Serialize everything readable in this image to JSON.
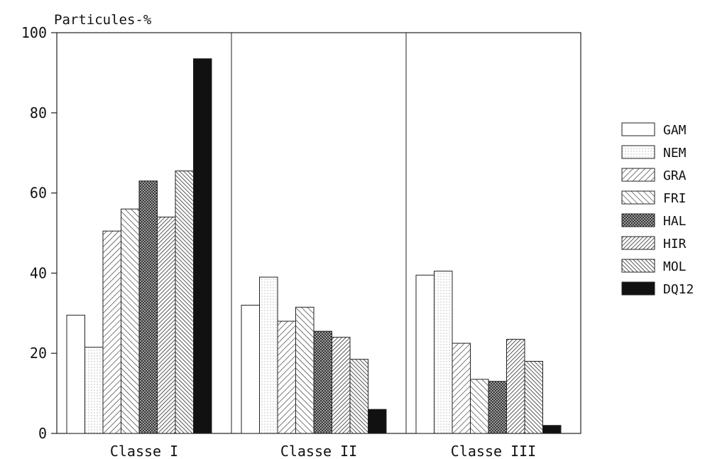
{
  "chart_data": {
    "type": "bar",
    "title": "",
    "ylabel": "Particules-%",
    "xlabel": "",
    "ylim": [
      0,
      100
    ],
    "yticks": [
      0,
      20,
      40,
      60,
      80,
      100
    ],
    "grid": false,
    "legend_position": "right",
    "categories": [
      "Classe I",
      "Classe II",
      "Classe III"
    ],
    "series": [
      {
        "name": "GAM",
        "values": [
          29.5,
          32.0,
          39.5
        ],
        "pattern": "blank"
      },
      {
        "name": "NEM",
        "values": [
          21.5,
          39.0,
          40.5
        ],
        "pattern": "dots"
      },
      {
        "name": "GRA",
        "values": [
          50.5,
          28.0,
          22.5
        ],
        "pattern": "diag-right"
      },
      {
        "name": "FRI",
        "values": [
          56.0,
          31.5,
          13.5
        ],
        "pattern": "diag-left"
      },
      {
        "name": "HAL",
        "values": [
          63.0,
          25.5,
          13.0
        ],
        "pattern": "crosshatch"
      },
      {
        "name": "HIR",
        "values": [
          54.0,
          24.0,
          23.5
        ],
        "pattern": "diag-right-dense"
      },
      {
        "name": "MOL",
        "values": [
          65.5,
          18.5,
          18.0
        ],
        "pattern": "diag-left-dense"
      },
      {
        "name": "DQ12",
        "values": [
          93.5,
          6.0,
          2.0
        ],
        "pattern": "solid"
      }
    ]
  }
}
